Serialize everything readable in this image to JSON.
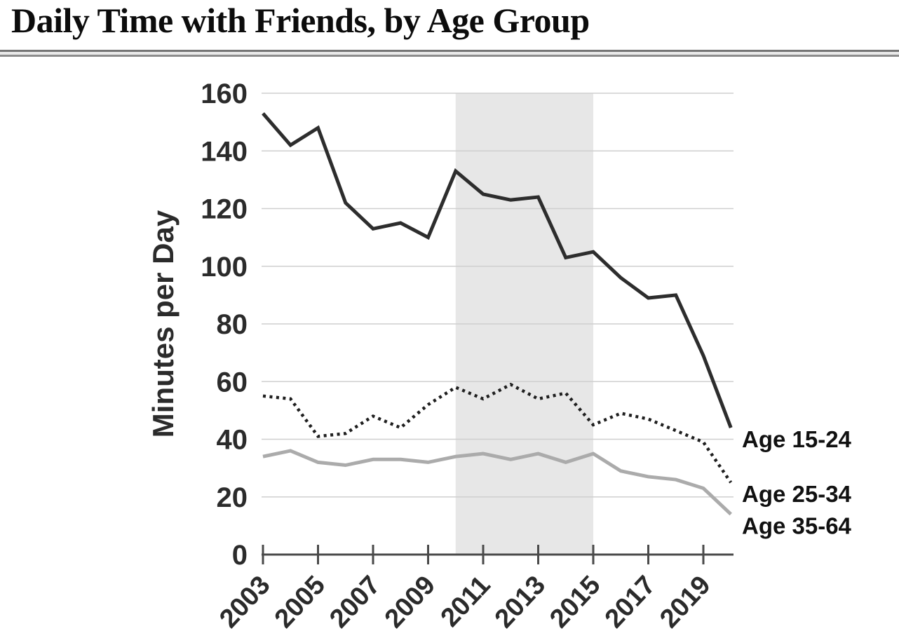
{
  "page": {
    "title": "Daily Time with Friends, by Age Group"
  },
  "chart_data": {
    "type": "line",
    "title": "Daily Time with Friends, by Age Group",
    "xlabel": "",
    "ylabel": "Minutes per Day",
    "x": [
      2003,
      2004,
      2005,
      2006,
      2007,
      2008,
      2009,
      2010,
      2011,
      2012,
      2013,
      2014,
      2015,
      2016,
      2017,
      2018,
      2019,
      2020
    ],
    "series": [
      {
        "name": "Age 15-24",
        "style": "solid-dark",
        "color": "#2d2d2d",
        "values": [
          153,
          142,
          148,
          122,
          113,
          115,
          110,
          133,
          125,
          123,
          124,
          103,
          105,
          96,
          89,
          90,
          69,
          44
        ]
      },
      {
        "name": "Age 25-34",
        "style": "dotted",
        "color": "#1f1f1f",
        "values": [
          55,
          54,
          41,
          42,
          48,
          44,
          52,
          58,
          54,
          59,
          54,
          56,
          45,
          49,
          47,
          43,
          39,
          25
        ]
      },
      {
        "name": "Age 35-64",
        "style": "solid-light",
        "color": "#ababab",
        "values": [
          34,
          36,
          32,
          31,
          33,
          33,
          32,
          34,
          35,
          33,
          35,
          32,
          35,
          29,
          27,
          26,
          23,
          14
        ]
      }
    ],
    "ylim": [
      0,
      160
    ],
    "yticks": [
      0,
      20,
      40,
      60,
      80,
      100,
      120,
      140,
      160
    ],
    "xticks": [
      2003,
      2005,
      2007,
      2009,
      2011,
      2013,
      2015,
      2017,
      2019
    ],
    "grid": "horizontal",
    "gridline_color": "#cfcfcf",
    "axis_color": "#4a4a4a",
    "legend_position": "end-of-line-labels-right",
    "shaded_region": {
      "from": 2010,
      "to": 2015,
      "color": "#e7e7e7"
    }
  }
}
